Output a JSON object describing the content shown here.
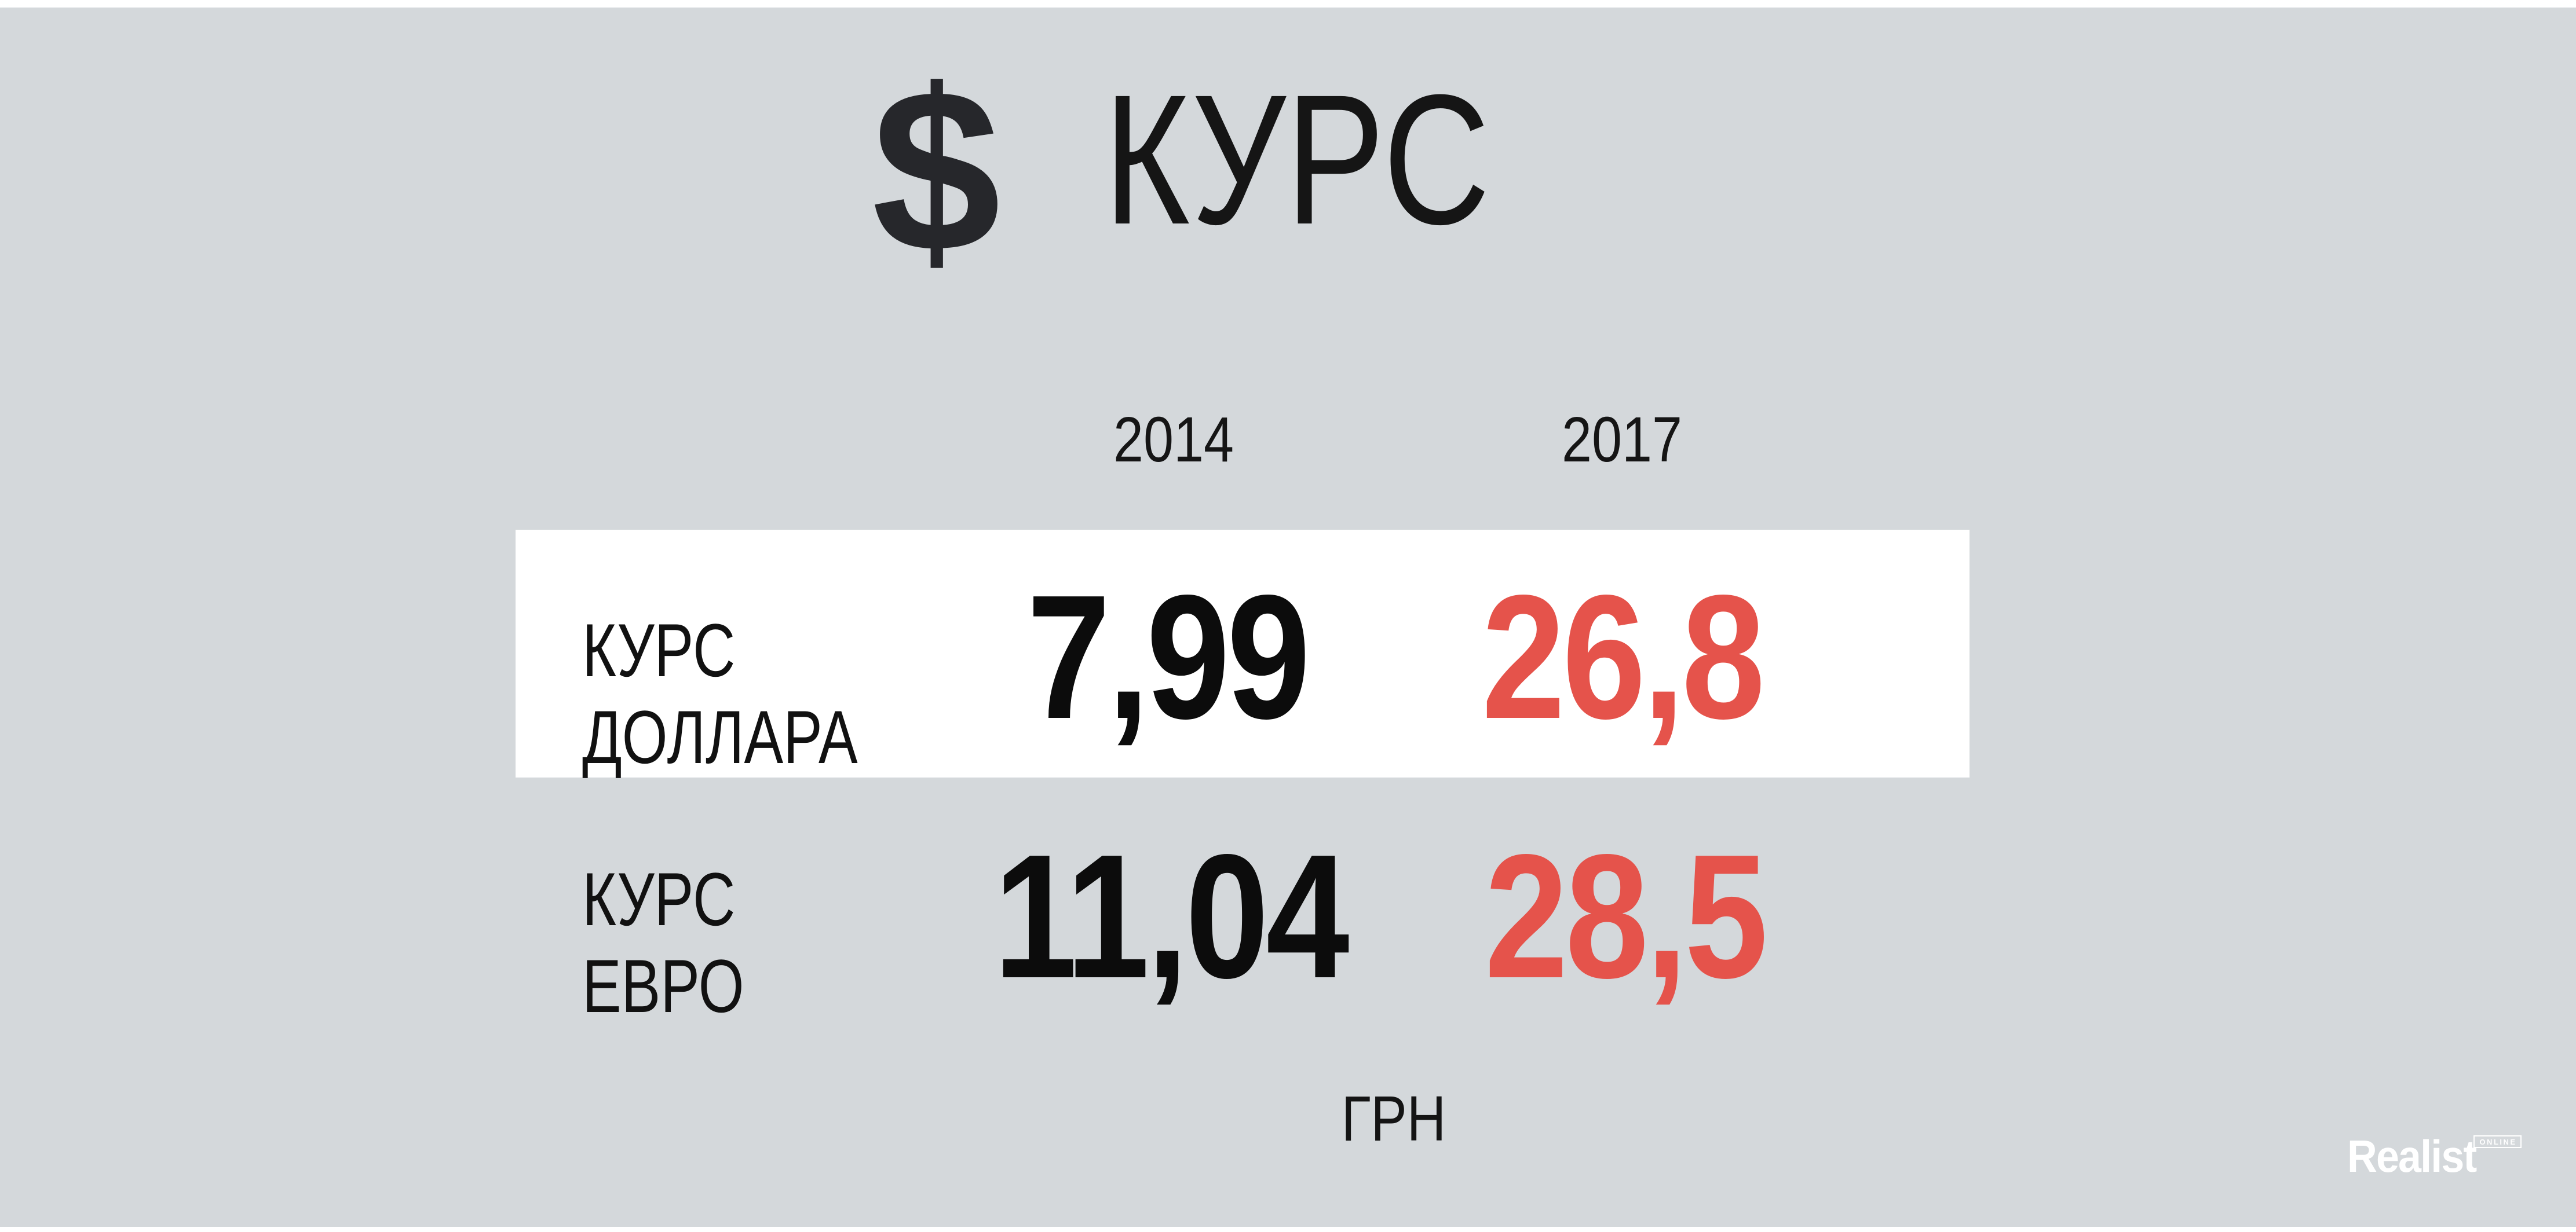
{
  "colors": {
    "background": "#d4d8db",
    "card": "#ffffff",
    "black": "#0c0c0c",
    "red": "#e5534b",
    "white": "#ffffff"
  },
  "title": {
    "dollar_icon": "$",
    "text": "КУРС"
  },
  "years": {
    "col1": "2014",
    "col2": "2017"
  },
  "rows": {
    "dollar": {
      "label1": "КУРС",
      "label2": "ДОЛЛАРА",
      "v2014": "7,99",
      "v2017": "26,8"
    },
    "euro": {
      "label1": "КУРС",
      "label2": "ЕВРО",
      "v2014": "11,04",
      "v2017": "28,5"
    }
  },
  "unit": "ГРН",
  "brand": {
    "name": "Realist",
    "badge": "ONLINE"
  },
  "chart_data": {
    "type": "table",
    "title": "КУРС",
    "categories": [
      "2014",
      "2017"
    ],
    "series": [
      {
        "name": "КУРС ДОЛЛАРА",
        "values": [
          7.99,
          26.8
        ]
      },
      {
        "name": "КУРС ЕВРО",
        "values": [
          11.04,
          28.5
        ]
      }
    ],
    "unit": "ГРН",
    "layout_hints": {
      "highlighted_row": "КУРС ДОЛЛАРА",
      "value_2014_color": "#0c0c0c",
      "value_2017_color": "#e5534b",
      "grid": false
    }
  }
}
